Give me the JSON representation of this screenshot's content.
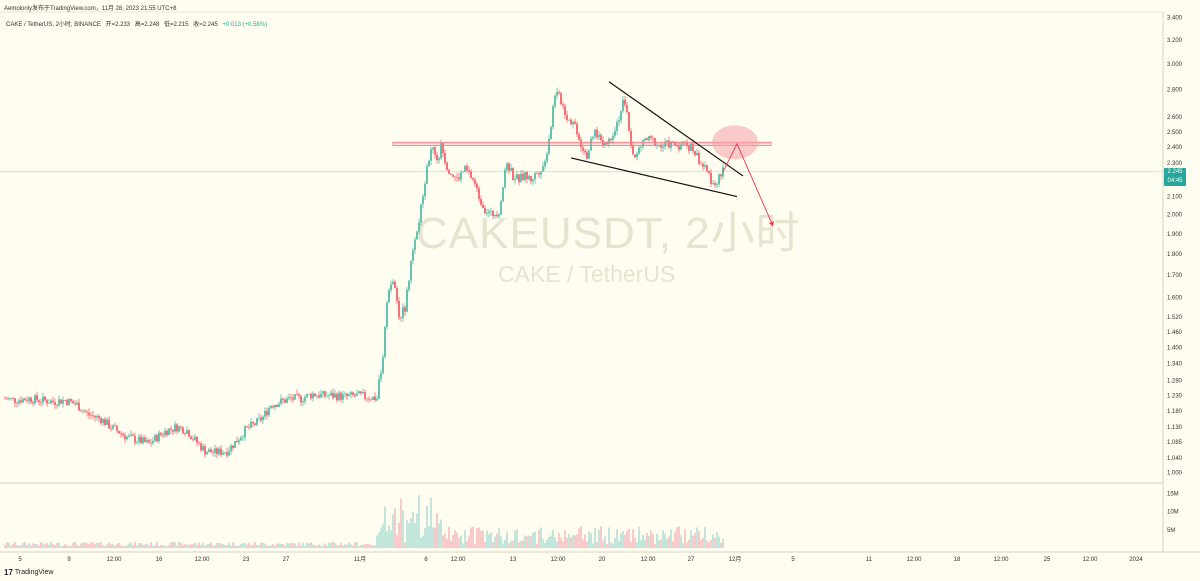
{
  "header": {
    "text": "Aemolonly发布于TradingView.com，11月 28, 2023 21:55 UTC+8"
  },
  "info": {
    "symbol": "CAKE / TetherUS, 2小时, BINANCE",
    "open": "开=2.233",
    "high": "高=2.248",
    "low": "低=2.215",
    "close": "收=2.245",
    "change": "+0.013 (+0.58%)"
  },
  "watermark": {
    "main": "CAKEUSDT, 2小时",
    "sub": "CAKE / TetherUS"
  },
  "price_badge": {
    "price": "2.245",
    "countdown": "04:45"
  },
  "footer": {
    "logo": "17",
    "brand": "TradingView"
  },
  "colors": {
    "up": "#22ab94",
    "down": "#f23645",
    "zone": "#f0808a",
    "background": "#fffdf0"
  },
  "chart_data": {
    "type": "candlestick",
    "title": "CAKEUSDT, 2小时",
    "subtitle": "CAKE / TetherUS",
    "y_scale": "log",
    "ylim": [
      0.98,
      3.45
    ],
    "y_ticks": [
      "3.400",
      "3.200",
      "3.000",
      "2.800",
      "2.600",
      "2.500",
      "2.400",
      "2.300",
      "2.200",
      "2.100",
      "2.000",
      "1.900",
      "1.800",
      "1.700",
      "1.600",
      "1.520",
      "1.460",
      "1.400",
      "1.340",
      "1.280",
      "1.230",
      "1.180",
      "1.130",
      "1.085",
      "1.040",
      "1.000"
    ],
    "x_ticks": [
      "5",
      "9",
      "12:00",
      "16",
      "12:00",
      "23",
      "27",
      "11月",
      "6",
      "12:00",
      "13",
      "12:00",
      "20",
      "12:00",
      "27",
      "12月",
      "5",
      "11",
      "12:00",
      "18",
      "12:00",
      "25",
      "12:00",
      "2024"
    ],
    "last_price": 2.245,
    "price_path": [
      [
        0,
        1.22
      ],
      [
        10,
        1.215
      ],
      [
        24,
        1.22
      ],
      [
        34,
        1.215
      ],
      [
        48,
        1.21
      ],
      [
        60,
        1.215
      ],
      [
        72,
        1.2
      ],
      [
        82,
        1.17
      ],
      [
        96,
        1.155
      ],
      [
        106,
        1.13
      ],
      [
        122,
        1.1
      ],
      [
        134,
        1.09
      ],
      [
        144,
        1.08
      ],
      [
        152,
        1.1
      ],
      [
        162,
        1.12
      ],
      [
        172,
        1.13
      ],
      [
        182,
        1.12
      ],
      [
        190,
        1.09
      ],
      [
        200,
        1.06
      ],
      [
        210,
        1.055
      ],
      [
        222,
        1.06
      ],
      [
        232,
        1.09
      ],
      [
        240,
        1.12
      ],
      [
        250,
        1.14
      ],
      [
        258,
        1.16
      ],
      [
        266,
        1.2
      ],
      [
        276,
        1.21
      ],
      [
        286,
        1.22
      ],
      [
        296,
        1.22
      ],
      [
        308,
        1.235
      ],
      [
        318,
        1.23
      ],
      [
        330,
        1.23
      ],
      [
        340,
        1.225
      ],
      [
        352,
        1.23
      ],
      [
        364,
        1.225
      ],
      [
        372,
        1.22
      ],
      [
        378,
        1.37
      ],
      [
        382,
        1.6
      ],
      [
        388,
        1.68
      ],
      [
        394,
        1.52
      ],
      [
        400,
        1.56
      ],
      [
        406,
        1.75
      ],
      [
        412,
        1.9
      ],
      [
        418,
        2.1
      ],
      [
        422,
        2.3
      ],
      [
        428,
        2.4
      ],
      [
        432,
        2.3
      ],
      [
        436,
        2.4
      ],
      [
        442,
        2.28
      ],
      [
        446,
        2.24
      ],
      [
        452,
        2.2
      ],
      [
        460,
        2.26
      ],
      [
        468,
        2.2
      ],
      [
        474,
        2.1
      ],
      [
        480,
        2.03
      ],
      [
        486,
        2.0
      ],
      [
        494,
        2.02
      ],
      [
        502,
        2.3
      ],
      [
        508,
        2.22
      ],
      [
        514,
        2.2
      ],
      [
        520,
        2.22
      ],
      [
        526,
        2.2
      ],
      [
        532,
        2.24
      ],
      [
        540,
        2.3
      ],
      [
        546,
        2.55
      ],
      [
        550,
        2.78
      ],
      [
        556,
        2.72
      ],
      [
        562,
        2.6
      ],
      [
        570,
        2.55
      ],
      [
        576,
        2.42
      ],
      [
        582,
        2.35
      ],
      [
        590,
        2.5
      ],
      [
        596,
        2.45
      ],
      [
        602,
        2.42
      ],
      [
        608,
        2.5
      ],
      [
        614,
        2.6
      ],
      [
        618,
        2.7
      ],
      [
        622,
        2.62
      ],
      [
        626,
        2.42
      ],
      [
        630,
        2.32
      ],
      [
        634,
        2.38
      ],
      [
        640,
        2.45
      ],
      [
        648,
        2.44
      ],
      [
        656,
        2.4
      ],
      [
        664,
        2.42
      ],
      [
        672,
        2.41
      ],
      [
        680,
        2.42
      ],
      [
        688,
        2.39
      ],
      [
        694,
        2.32
      ],
      [
        700,
        2.26
      ],
      [
        706,
        2.2
      ],
      [
        712,
        2.18
      ],
      [
        718,
        2.245
      ]
    ],
    "volume_ylim": [
      0,
      17
    ],
    "volume_ticks": [
      "15M",
      "10M",
      "5M"
    ],
    "annotations": {
      "resistance_zone": [
        2.41,
        2.43
      ],
      "wedge_upper": [
        [
          604,
          2.86
        ],
        [
          738,
          2.22
        ]
      ],
      "wedge_lower": [
        [
          566,
          2.33
        ],
        [
          732,
          2.1
        ]
      ],
      "projection": [
        [
          718,
          2.245
        ],
        [
          732,
          2.42
        ],
        [
          768,
          1.94
        ]
      ]
    }
  }
}
